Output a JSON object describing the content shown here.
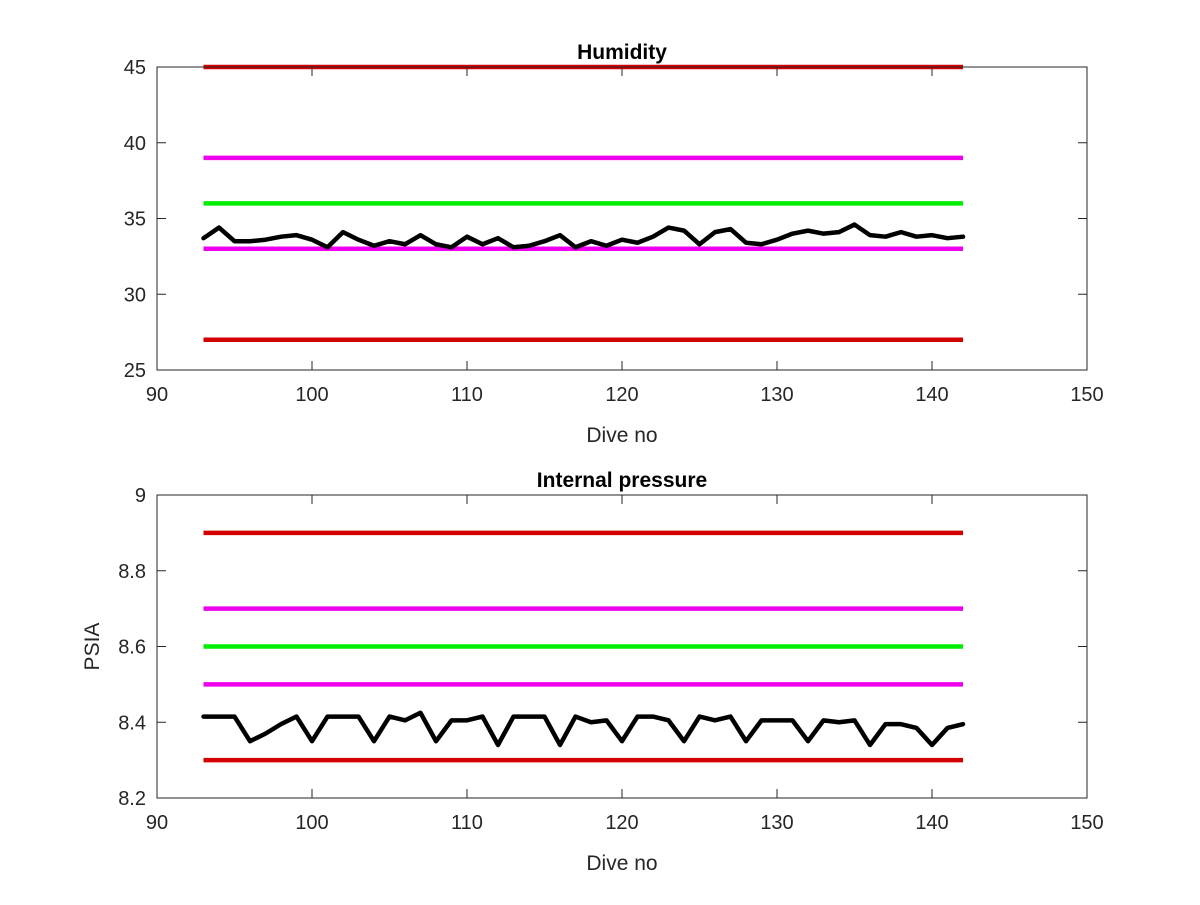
{
  "chart_data": [
    {
      "type": "line",
      "title": "Humidity",
      "xlabel": "Dive no",
      "ylabel": "",
      "xlim": [
        90,
        150
      ],
      "ylim": [
        25,
        45
      ],
      "xticks": [
        90,
        100,
        110,
        120,
        130,
        140,
        150
      ],
      "yticks": [
        25,
        30,
        35,
        40,
        45
      ],
      "xtick_labels": [
        "90",
        "100",
        "110",
        "120",
        "130",
        "140",
        "150"
      ],
      "ytick_labels": [
        "25",
        "30",
        "35",
        "40",
        "45"
      ],
      "grid": false,
      "limit_lines": [
        {
          "y": 45,
          "x": [
            93,
            142
          ],
          "color": "#d40000"
        },
        {
          "y": 39,
          "x": [
            93,
            142
          ],
          "color": "#ee00ee"
        },
        {
          "y": 36,
          "x": [
            93,
            142
          ],
          "color": "#00ee00"
        },
        {
          "y": 33,
          "x": [
            93,
            142
          ],
          "color": "#ee00ee"
        },
        {
          "y": 27,
          "x": [
            93,
            142
          ],
          "color": "#d40000"
        }
      ],
      "series": [
        {
          "color": "#000000",
          "x": [
            93,
            94,
            95,
            96,
            97,
            98,
            99,
            100,
            101,
            102,
            103,
            104,
            105,
            106,
            107,
            108,
            109,
            110,
            111,
            112,
            113,
            114,
            115,
            116,
            117,
            118,
            119,
            120,
            121,
            122,
            123,
            124,
            125,
            126,
            127,
            128,
            129,
            130,
            131,
            132,
            133,
            134,
            135,
            136,
            137,
            138,
            139,
            140,
            141,
            142
          ],
          "y": [
            33.7,
            34.4,
            33.5,
            33.5,
            33.6,
            33.8,
            33.9,
            33.6,
            33.1,
            34.1,
            33.6,
            33.2,
            33.5,
            33.3,
            33.9,
            33.3,
            33.1,
            33.8,
            33.3,
            33.7,
            33.1,
            33.2,
            33.5,
            33.9,
            33.1,
            33.5,
            33.2,
            33.6,
            33.4,
            33.8,
            34.4,
            34.2,
            33.3,
            34.1,
            34.3,
            33.4,
            33.3,
            33.6,
            34.0,
            34.2,
            34.0,
            34.1,
            34.6,
            33.9,
            33.8,
            34.1,
            33.8,
            33.9,
            33.7,
            33.8
          ]
        }
      ]
    },
    {
      "type": "line",
      "title": "Internal pressure",
      "xlabel": "Dive no",
      "ylabel": "PSIA",
      "xlim": [
        90,
        150
      ],
      "ylim": [
        8.2,
        9
      ],
      "xticks": [
        90,
        100,
        110,
        120,
        130,
        140,
        150
      ],
      "yticks": [
        8.2,
        8.4,
        8.6,
        8.8,
        9
      ],
      "xtick_labels": [
        "90",
        "100",
        "110",
        "120",
        "130",
        "140",
        "150"
      ],
      "ytick_labels": [
        "8.2",
        "8.4",
        "8.6",
        "8.8",
        "9"
      ],
      "grid": false,
      "limit_lines": [
        {
          "y": 8.9,
          "x": [
            93,
            142
          ],
          "color": "#d40000"
        },
        {
          "y": 8.7,
          "x": [
            93,
            142
          ],
          "color": "#ee00ee"
        },
        {
          "y": 8.6,
          "x": [
            93,
            142
          ],
          "color": "#00ee00"
        },
        {
          "y": 8.5,
          "x": [
            93,
            142
          ],
          "color": "#ee00ee"
        },
        {
          "y": 8.3,
          "x": [
            93,
            142
          ],
          "color": "#d40000"
        }
      ],
      "series": [
        {
          "color": "#000000",
          "x": [
            93,
            94,
            95,
            96,
            97,
            98,
            99,
            100,
            101,
            102,
            103,
            104,
            105,
            106,
            107,
            108,
            109,
            110,
            111,
            112,
            113,
            114,
            115,
            116,
            117,
            118,
            119,
            120,
            121,
            122,
            123,
            124,
            125,
            126,
            127,
            128,
            129,
            130,
            131,
            132,
            133,
            134,
            135,
            136,
            137,
            138,
            139,
            140,
            141,
            142
          ],
          "y": [
            8.415,
            8.415,
            8.415,
            8.35,
            8.37,
            8.395,
            8.415,
            8.35,
            8.415,
            8.415,
            8.415,
            8.35,
            8.415,
            8.405,
            8.425,
            8.35,
            8.405,
            8.405,
            8.415,
            8.34,
            8.415,
            8.415,
            8.415,
            8.34,
            8.415,
            8.4,
            8.405,
            8.35,
            8.415,
            8.415,
            8.405,
            8.35,
            8.415,
            8.405,
            8.415,
            8.35,
            8.405,
            8.405,
            8.405,
            8.35,
            8.405,
            8.4,
            8.405,
            8.34,
            8.395,
            8.395,
            8.385,
            8.34,
            8.385,
            8.395
          ]
        }
      ]
    }
  ]
}
